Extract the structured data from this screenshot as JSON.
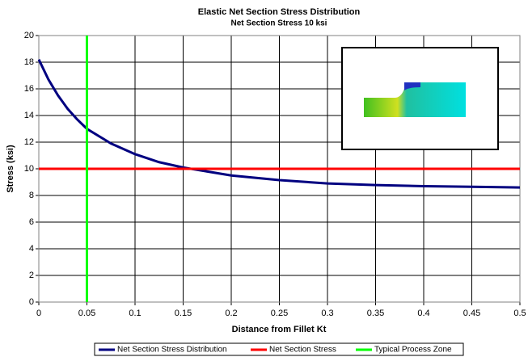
{
  "chart_data": {
    "type": "line",
    "title": "Elastic Net Section Stress Distribution",
    "subtitle": "Net Section Stress 10 ksi",
    "x_label": "Distance from Fillet Kt",
    "y_label": "Stress (ksi)",
    "xlim": [
      0,
      0.5
    ],
    "ylim": [
      0,
      20
    ],
    "xticks": [
      0,
      0.05,
      0.1,
      0.15,
      0.2,
      0.25,
      0.3,
      0.35,
      0.4,
      0.45,
      0.5
    ],
    "yticks": [
      0,
      2,
      4,
      6,
      8,
      10,
      12,
      14,
      16,
      18,
      20
    ],
    "grid": true,
    "legend": "bottom",
    "series": [
      {
        "name": "Net Section Stress Distribution",
        "color": "#000080",
        "x": [
          0,
          0.01,
          0.02,
          0.03,
          0.04,
          0.05,
          0.075,
          0.1,
          0.125,
          0.15,
          0.2,
          0.25,
          0.3,
          0.35,
          0.4,
          0.45,
          0.5
        ],
        "values": [
          18.2,
          16.7,
          15.5,
          14.5,
          13.7,
          13.0,
          11.9,
          11.1,
          10.5,
          10.1,
          9.5,
          9.15,
          8.9,
          8.78,
          8.7,
          8.65,
          8.6
        ]
      },
      {
        "name": "Net Section Stress",
        "color": "#ff0000",
        "x": [
          0,
          0.5
        ],
        "values": [
          10,
          10
        ]
      },
      {
        "name": "Typical Process Zone",
        "color": "#00ff00",
        "x": [
          0.05,
          0.05
        ],
        "values": [
          0,
          20
        ]
      }
    ]
  }
}
